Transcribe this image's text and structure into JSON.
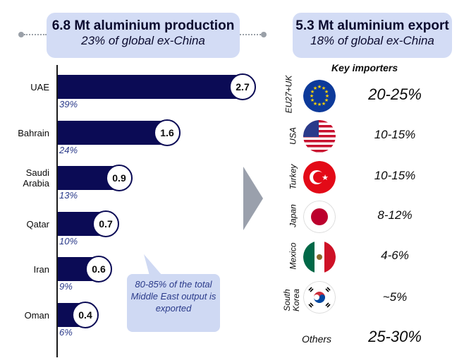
{
  "left_header": {
    "title": "6.8 Mt aluminium production",
    "subtitle": "23% of global ex-China"
  },
  "right_header": {
    "title": "5.3 Mt aluminium export",
    "subtitle": "18% of global ex-China"
  },
  "chart_data": {
    "type": "bar",
    "orientation": "horizontal",
    "title": "6.8 Mt aluminium production",
    "categories": [
      "UAE",
      "Bahrain",
      "Saudi Arabia",
      "Qatar",
      "Iran",
      "Oman"
    ],
    "category_labels": [
      "UAE",
      "Bahrain",
      "Saudi\nArabia",
      "Qatar",
      "Iran",
      "Oman"
    ],
    "values": [
      2.7,
      1.6,
      0.9,
      0.7,
      0.6,
      0.4
    ],
    "value_labels": [
      "2.7",
      "1.6",
      "0.9",
      "0.7",
      "0.6",
      "0.4"
    ],
    "shares": [
      "39%",
      "24%",
      "13%",
      "10%",
      "9%",
      "6%"
    ],
    "xlim": [
      0,
      2.7
    ],
    "colors": {
      "bar": "#0b0b55",
      "share_text": "#2a3a8a"
    }
  },
  "callout": {
    "text": "80-85% of the total Middle East output is exported"
  },
  "importers": {
    "heading": "Key importers",
    "items": [
      {
        "country": "EU27+UK",
        "flag": "eu-flag-icon",
        "share": "20-25%"
      },
      {
        "country": "USA",
        "flag": "usa-flag-icon",
        "share": "10-15%"
      },
      {
        "country": "Turkey",
        "flag": "turkey-flag-icon",
        "share": "10-15%"
      },
      {
        "country": "Japan",
        "flag": "japan-flag-icon",
        "share": "8-12%"
      },
      {
        "country": "Mexico",
        "flag": "mexico-flag-icon",
        "share": "4-6%"
      },
      {
        "country": "South Korea",
        "flag": "south-korea-flag-icon",
        "share": "~5%"
      }
    ],
    "others": {
      "label": "Others",
      "share": "25-30%"
    }
  }
}
